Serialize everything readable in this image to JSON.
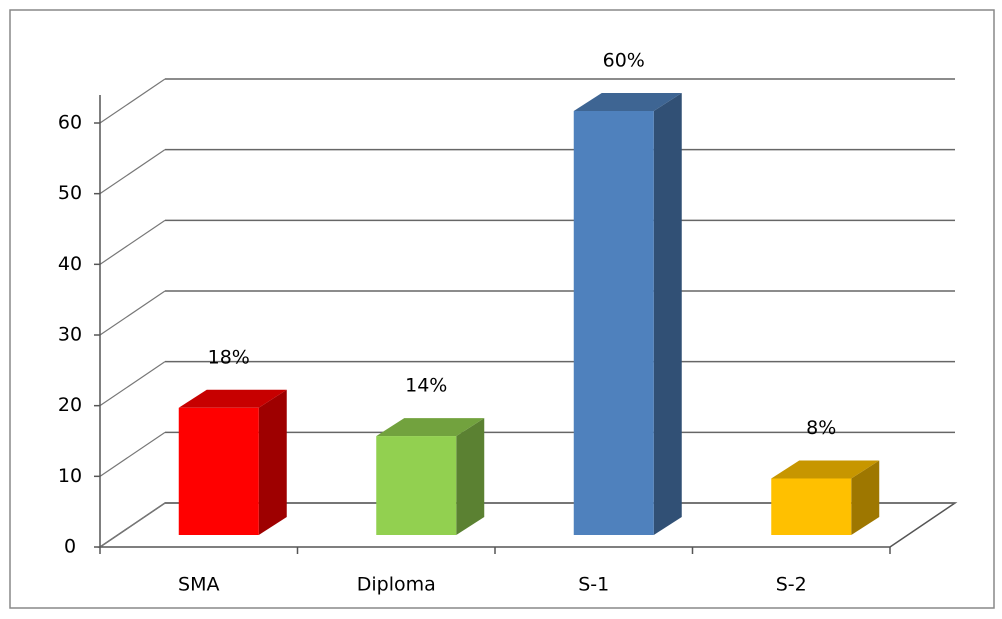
{
  "chart_data": {
    "type": "bar3d",
    "categories": [
      "SMA",
      "Diploma",
      "S-1",
      "S-2"
    ],
    "values": [
      18,
      14,
      60,
      8
    ],
    "value_labels": [
      "18%",
      "14%",
      "60%",
      "8%"
    ],
    "colors": [
      "#ff0000",
      "#92d050",
      "#4f81bd",
      "#ffc000"
    ],
    "ylim": [
      0,
      60
    ],
    "yticks": [
      0,
      10,
      20,
      30,
      40,
      50,
      60
    ],
    "grid": true
  }
}
